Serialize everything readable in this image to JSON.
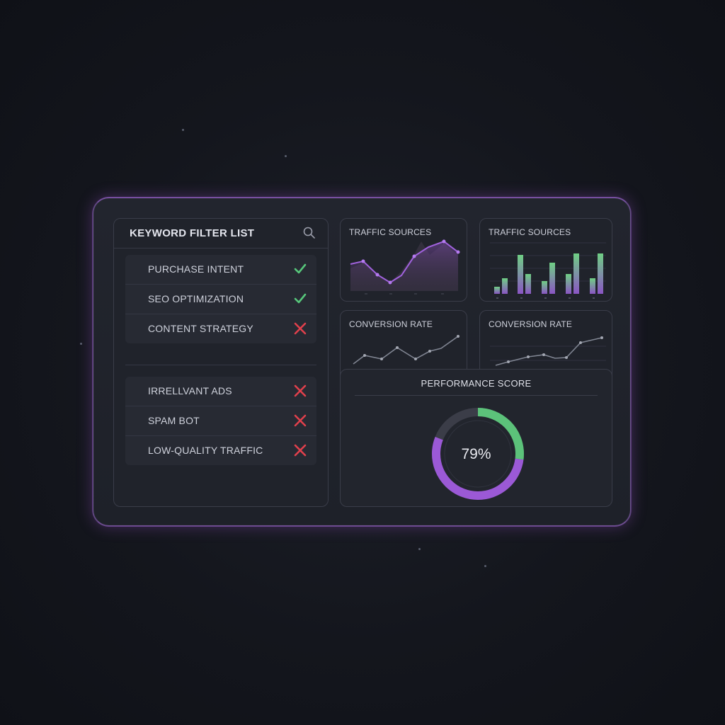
{
  "keyword_panel": {
    "title": "KEYWORD FILTER LIST",
    "search_icon": "search-icon",
    "allowed": [
      {
        "label": "PURCHASE INTENT",
        "status": "check"
      },
      {
        "label": "SEO OPTIMIZATION",
        "status": "check"
      },
      {
        "label": "CONTENT STRATEGY",
        "status": "cross"
      }
    ],
    "blocked": [
      {
        "label": "IRRELLVANT ADS",
        "status": "cross"
      },
      {
        "label": "SPAM BOT",
        "status": "cross"
      },
      {
        "label": "LOW-QUALITY TRAFFIC",
        "status": "cross"
      }
    ]
  },
  "charts": {
    "traffic_area": {
      "title": "TRAFFIC SOURCES"
    },
    "traffic_bar": {
      "title": "TRAFFIC SOURCES"
    },
    "conversion_1": {
      "title": "CONVERSION RATE"
    },
    "conversion_2": {
      "title": "CONVERSION RATE"
    }
  },
  "performance": {
    "title": "PERFORMANCE SCORE",
    "value_label": "79%",
    "score": 79
  },
  "colors": {
    "accent_purple": "#9b59d6",
    "accent_green": "#5cc27a",
    "cross_red": "#e0404c",
    "check_green": "#57c77b"
  }
}
